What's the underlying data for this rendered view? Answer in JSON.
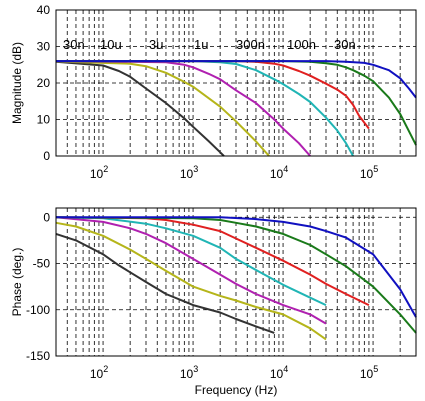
{
  "chart_data": [
    {
      "type": "line",
      "ylabel": "Magnitude (dB)",
      "xlabel": "",
      "xscale": "log",
      "xlim": [
        30,
        300000
      ],
      "ylim": [
        0,
        40
      ],
      "yticks": [
        0,
        10,
        20,
        30,
        40
      ],
      "xticks": [
        {
          "value": 100,
          "base": "10",
          "exp": "2"
        },
        {
          "value": 1000,
          "base": "10",
          "exp": "3"
        },
        {
          "value": 10000,
          "base": "10",
          "exp": "4"
        },
        {
          "value": 100000,
          "base": "10",
          "exp": "5"
        }
      ],
      "grid": "dashed",
      "annotations": [
        "30n",
        "10u",
        "3u",
        "1u",
        "300n",
        "100n",
        "30n"
      ],
      "series": [
        {
          "color": "#333333",
          "x": [
            30,
            100,
            150,
            200,
            300,
            500,
            800,
            1000,
            1500,
            2000,
            2200
          ],
          "y": [
            25.8,
            24.8,
            23.3,
            21.7,
            18.5,
            14.5,
            10.3,
            8.0,
            4.0,
            1.0,
            0
          ]
        },
        {
          "color": "#b5b51a",
          "x": [
            30,
            200,
            300,
            500,
            800,
            1000,
            2000,
            3000,
            5000,
            7000
          ],
          "y": [
            25.9,
            25.3,
            24.6,
            22.8,
            20.3,
            19.0,
            13.5,
            9.5,
            4.0,
            0
          ]
        },
        {
          "color": "#b020b0",
          "x": [
            30,
            500,
            800,
            1000,
            1500,
            2000,
            3000,
            5000,
            8000,
            10000,
            15000,
            20000
          ],
          "y": [
            26,
            25.7,
            25.0,
            24.3,
            22.5,
            21.0,
            18.0,
            14.5,
            10.0,
            7.5,
            3.5,
            0
          ]
        },
        {
          "color": "#20b5b5",
          "x": [
            30,
            1000,
            2000,
            3000,
            5000,
            8000,
            10000,
            15000,
            20000,
            30000,
            40000,
            50000,
            60000
          ],
          "y": [
            26,
            26,
            25.7,
            25.2,
            23.5,
            21.0,
            19.7,
            17.0,
            14.8,
            10.5,
            7.0,
            3.5,
            0
          ]
        },
        {
          "color": "#e02020",
          "x": [
            30,
            3000,
            5000,
            8000,
            10000,
            15000,
            20000,
            30000,
            40000,
            50000,
            60000,
            70000,
            90000
          ],
          "y": [
            26,
            26,
            25.8,
            25.3,
            24.8,
            23.3,
            22.0,
            19.8,
            18.2,
            16.5,
            14.0,
            11.0,
            7.5
          ]
        },
        {
          "color": "#1a7a1a",
          "x": [
            30,
            10000,
            20000,
            30000,
            40000,
            50000,
            60000,
            80000,
            100000,
            150000,
            200000,
            300000
          ],
          "y": [
            26,
            26,
            25.8,
            25.4,
            25.0,
            24.3,
            23.5,
            22.0,
            20.5,
            16.0,
            11.5,
            3.0
          ]
        },
        {
          "color": "#1010c0",
          "x": [
            30,
            30000,
            50000,
            80000,
            100000,
            150000,
            200000,
            250000,
            300000
          ],
          "y": [
            26,
            26,
            25.8,
            25.5,
            25.0,
            23.5,
            21.3,
            18.5,
            16.0
          ]
        }
      ]
    },
    {
      "type": "line",
      "ylabel": "Phase (deg.)",
      "xlabel": "Frequency (Hz)",
      "xscale": "log",
      "xlim": [
        30,
        300000
      ],
      "ylim": [
        -150,
        10
      ],
      "yticks": [
        0,
        -50,
        -100,
        -150
      ],
      "xticks": [
        {
          "value": 100,
          "base": "10",
          "exp": "2"
        },
        {
          "value": 1000,
          "base": "10",
          "exp": "3"
        },
        {
          "value": 10000,
          "base": "10",
          "exp": "4"
        },
        {
          "value": 100000,
          "base": "10",
          "exp": "5"
        }
      ],
      "grid": "dashed",
      "series": [
        {
          "color": "#333333",
          "x": [
            30,
            50,
            100,
            150,
            300,
            500,
            800,
            1000,
            2000,
            3000,
            5000,
            8000
          ],
          "y": [
            -18,
            -25,
            -40,
            -52,
            -70,
            -83,
            -91,
            -95,
            -103,
            -110,
            -118,
            -125
          ]
        },
        {
          "color": "#b5b51a",
          "x": [
            30,
            50,
            100,
            200,
            300,
            500,
            1000,
            2000,
            3000,
            5000,
            10000,
            20000,
            30000
          ],
          "y": [
            -6,
            -10,
            -20,
            -35,
            -45,
            -58,
            -75,
            -85,
            -90,
            -97,
            -105,
            -120,
            -132
          ]
        },
        {
          "color": "#b020b0",
          "x": [
            30,
            100,
            200,
            300,
            500,
            1000,
            2000,
            3000,
            5000,
            10000,
            20000,
            30000
          ],
          "y": [
            0,
            -5,
            -12,
            -18,
            -28,
            -45,
            -62,
            -72,
            -83,
            -95,
            -105,
            -115
          ]
        },
        {
          "color": "#20b5b5",
          "x": [
            30,
            100,
            300,
            500,
            1000,
            2000,
            3000,
            5000,
            10000,
            20000,
            30000
          ],
          "y": [
            0,
            -1,
            -7,
            -12,
            -20,
            -33,
            -45,
            -57,
            -73,
            -87,
            -95
          ]
        },
        {
          "color": "#e02020",
          "x": [
            30,
            300,
            500,
            1000,
            2000,
            3000,
            5000,
            10000,
            20000,
            30000,
            50000,
            90000
          ],
          "y": [
            0,
            -1,
            -3,
            -8,
            -15,
            -23,
            -33,
            -47,
            -62,
            -72,
            -83,
            -95
          ]
        },
        {
          "color": "#1a7a1a",
          "x": [
            30,
            1000,
            2000,
            3000,
            5000,
            10000,
            20000,
            30000,
            50000,
            100000,
            200000,
            300000
          ],
          "y": [
            0,
            -1,
            -3,
            -6,
            -10,
            -18,
            -30,
            -40,
            -53,
            -75,
            -105,
            -125
          ]
        },
        {
          "color": "#1010c0",
          "x": [
            30,
            2000,
            5000,
            10000,
            20000,
            30000,
            50000,
            100000,
            200000,
            300000
          ],
          "y": [
            0,
            0,
            -2,
            -5,
            -10,
            -15,
            -22,
            -40,
            -78,
            -108
          ]
        }
      ]
    }
  ]
}
